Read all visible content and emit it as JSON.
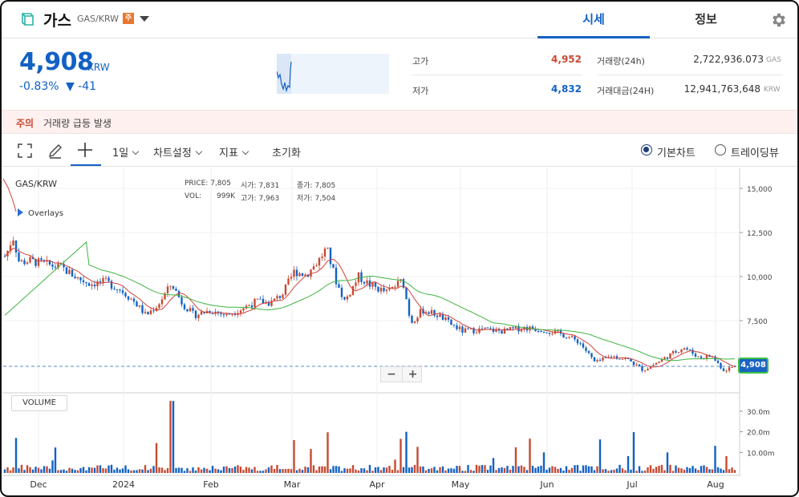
{
  "header": {
    "coin_name": "가스",
    "pair": "GAS/KRW",
    "badge": "주",
    "tabs": [
      {
        "label": "시세"
      },
      {
        "label": "정보"
      }
    ]
  },
  "ticker": {
    "price": "4,908",
    "unit": "KRW",
    "change_rate": "-0.83%",
    "change_amount": "▼ -41"
  },
  "stats": {
    "high_label": "고가",
    "high_value": "4,952",
    "low_label": "저가",
    "low_value": "4,832",
    "volume_label": "거래량(24h)",
    "volume_value": "2,722,936.073",
    "volume_unit": "GAS",
    "amount_label": "거래대금(24H)",
    "amount_value": "12,941,763,648",
    "amount_unit": "KRW"
  },
  "notice": {
    "title": "주의",
    "text": "거래량 급등 발생"
  },
  "toolbar": {
    "interval": "1일",
    "chart_settings": "차트설정",
    "indicators": "지표",
    "reset": "초기화",
    "basic_chart": "기본차트",
    "tradingview": "트레이딩뷰"
  },
  "chart": {
    "pair_label": "GAS/KRW",
    "overlays": "Overlays",
    "legend": {
      "price_label": "PRICE:",
      "price": "7,805",
      "open_label": "시가:",
      "open": "7,831",
      "close_label": "종가:",
      "close": "7,805",
      "vol_label": "VOL:",
      "vol": "999K",
      "high_label": "고가:",
      "high": "7,963",
      "low_label": "저가:",
      "low": "7,504"
    },
    "volume_label": "VOLUME",
    "current_price_tag": "4,908",
    "zoom_out": "−",
    "zoom_in": "+"
  },
  "chart_data": {
    "type": "candlestick",
    "price_ticks": [
      "15,000",
      "12,500",
      "10,000",
      "7,500"
    ],
    "price_tick_values": [
      15000,
      12500,
      10000,
      7500
    ],
    "volume_ticks": [
      "30.0m",
      "20.0m",
      "10.00m"
    ],
    "volume_tick_values": [
      30,
      20,
      10
    ],
    "x_labels": [
      "Dec",
      "2024",
      "Feb",
      "Mar",
      "Apr",
      "May",
      "Jun",
      "Jul",
      "Aug"
    ],
    "ylim": [
      3500,
      15500
    ],
    "current_price": 4908,
    "colors": {
      "up": "#c84a31",
      "down": "#1261c4",
      "ma_short": "#d3423a",
      "ma_long": "#3fb43f"
    }
  }
}
